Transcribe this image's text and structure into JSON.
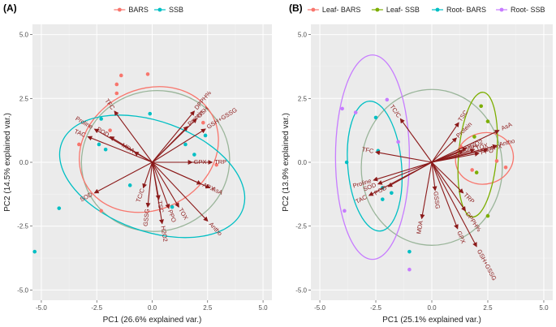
{
  "chart_data": [
    {
      "type": "scatter",
      "panel_label": "(A)",
      "xlabel": "PC1 (26.6% explained var.)",
      "ylabel": "PC2 (14.5% explained var.)",
      "xlim": [
        -5.4,
        5.4
      ],
      "ylim": [
        -5.4,
        5.4
      ],
      "xticks": [
        -5.0,
        -2.5,
        0.0,
        2.5,
        5.0
      ],
      "yticks": [
        -5.0,
        -2.5,
        0.0,
        2.5,
        5.0
      ],
      "tick_labels": [
        "-5.0",
        "-2.5",
        "0.0",
        "2.5",
        "5.0"
      ],
      "legend_position": "top",
      "series": [
        {
          "name": "BARS",
          "color": "#F8766D",
          "points": [
            [
              -1.4,
              3.4
            ],
            [
              -0.2,
              3.45
            ],
            [
              -1.6,
              3.05
            ],
            [
              -1.6,
              2.7
            ],
            [
              -3.3,
              0.7
            ],
            [
              -2.3,
              -1.9
            ],
            [
              -1.9,
              1.25
            ],
            [
              2.3,
              1.55
            ],
            [
              2.9,
              -0.1
            ]
          ],
          "ellipse": {
            "center": [
              -0.15,
              0.5
            ],
            "rx": 3.25,
            "ry": 2.35,
            "angle": -28
          }
        },
        {
          "name": "SSB",
          "color": "#00BFC4",
          "points": [
            [
              -5.3,
              -3.5
            ],
            [
              -4.2,
              -1.8
            ],
            [
              -2.3,
              1.7
            ],
            [
              -0.1,
              1.9
            ],
            [
              1.5,
              0.7
            ],
            [
              1.9,
              0.3
            ],
            [
              2.4,
              1.05
            ],
            [
              0.9,
              -1.75
            ],
            [
              -1.0,
              -0.9
            ],
            [
              -2.1,
              0.5
            ],
            [
              -2.4,
              0.7
            ]
          ],
          "ellipse": {
            "center": [
              0.0,
              -0.55
            ],
            "rx": 4.35,
            "ry": 2.15,
            "angle": 20
          }
        }
      ],
      "normal_ellipse": {
        "color": "#9AB59A",
        "center": [
          0.15,
          0.05
        ],
        "rx": 3.35,
        "ry": 2.75,
        "angle": -12
      },
      "loadings": [
        {
          "label": "TFC",
          "x": -1.7,
          "y": 2.0
        },
        {
          "label": "Proline",
          "x": -2.6,
          "y": 1.3
        },
        {
          "label": "TAC",
          "x": -2.9,
          "y": 1.0
        },
        {
          "label": "POD",
          "x": -1.9,
          "y": 1.0
        },
        {
          "label": "MDA",
          "x": -0.8,
          "y": 0.4
        },
        {
          "label": "SOD",
          "x": -2.6,
          "y": -1.2
        },
        {
          "label": "TC/C",
          "x": -0.4,
          "y": -1.0
        },
        {
          "label": "GSSG",
          "x": -0.2,
          "y": -1.75
        },
        {
          "label": "TSC",
          "x": 0.3,
          "y": -1.45
        },
        {
          "label": "H2O2",
          "x": 0.45,
          "y": -2.4
        },
        {
          "label": "PPO",
          "x": 0.75,
          "y": -1.8
        },
        {
          "label": "TOX",
          "x": 1.2,
          "y": -1.75
        },
        {
          "label": "Antho",
          "x": 2.5,
          "y": -2.3
        },
        {
          "label": "APX",
          "x": 2.2,
          "y": -0.85
        },
        {
          "label": "AsA",
          "x": 2.6,
          "y": -1.0
        },
        {
          "label": "TRP",
          "x": 2.7,
          "y": 0.0
        },
        {
          "label": "GPX",
          "x": 1.8,
          "y": 0.0
        },
        {
          "label": "GSH+GSSG",
          "x": 2.4,
          "y": 1.3
        },
        {
          "label": "GSH",
          "x": 2.0,
          "y": 1.7
        },
        {
          "label": "DPPH%",
          "x": 1.9,
          "y": 2.0
        },
        {
          "label": "Protein",
          "x": 1.6,
          "y": 1.4
        }
      ]
    },
    {
      "type": "scatter",
      "panel_label": "(B)",
      "xlabel": "PC1 (25.1% explained var.)",
      "ylabel": "PC2 (13.9% explained var.)",
      "xlim": [
        -5.4,
        5.4
      ],
      "ylim": [
        -5.4,
        5.4
      ],
      "xticks": [
        -5.0,
        -2.5,
        0.0,
        2.5,
        5.0
      ],
      "yticks": [
        -5.0,
        -2.5,
        0.0,
        2.5,
        5.0
      ],
      "tick_labels": [
        "-5.0",
        "-2.5",
        "0.0",
        "2.5",
        "5.0"
      ],
      "legend_position": "top",
      "series": [
        {
          "name": "Leaf- BARS",
          "color": "#F8766D",
          "points": [
            [
              3.3,
              -0.2
            ],
            [
              2.9,
              0.05
            ],
            [
              1.3,
              0.6
            ],
            [
              1.8,
              -0.3
            ]
          ],
          "ellipse": {
            "center": [
              2.35,
              0.15
            ],
            "rx": 1.3,
            "ry": 1.0,
            "angle": -15
          }
        },
        {
          "name": "Leaf- SSB",
          "color": "#7CAE00",
          "points": [
            [
              2.5,
              1.6
            ],
            [
              2.2,
              2.2
            ],
            [
              1.9,
              1.0
            ],
            [
              2.0,
              -0.4
            ],
            [
              2.5,
              -2.1
            ]
          ],
          "ellipse": {
            "center": [
              2.05,
              0.3
            ],
            "rx": 0.85,
            "ry": 2.45,
            "angle": 5
          }
        },
        {
          "name": "Root- BARS",
          "color": "#00BFC4",
          "points": [
            [
              -3.8,
              0.0
            ],
            [
              -2.5,
              1.75
            ],
            [
              -2.4,
              0.45
            ],
            [
              -2.2,
              -1.0
            ],
            [
              -1.0,
              -3.5
            ],
            [
              -1.8,
              -1.2
            ],
            [
              -2.2,
              -1.45
            ]
          ],
          "ellipse": {
            "center": [
              -2.55,
              -0.15
            ],
            "rx": 1.2,
            "ry": 2.55,
            "angle": -5
          }
        },
        {
          "name": "Root- SSB",
          "color": "#C77CFF",
          "points": [
            [
              -4.0,
              2.1
            ],
            [
              -3.4,
              1.95
            ],
            [
              -2.0,
              2.45
            ],
            [
              -3.9,
              -1.9
            ],
            [
              -1.5,
              0.8
            ],
            [
              -1.0,
              -4.2
            ]
          ],
          "ellipse": {
            "center": [
              -2.65,
              0.2
            ],
            "rx": 1.65,
            "ry": 4.0,
            "angle": 0
          }
        }
      ],
      "normal_ellipse": {
        "color": "#9AB59A",
        "center": [
          0.0,
          -0.2
        ],
        "rx": 3.15,
        "ry": 3.05,
        "angle": 0
      },
      "loadings": [
        {
          "label": "TC/C",
          "x": -1.4,
          "y": 1.7
        },
        {
          "label": "TFC",
          "x": -2.5,
          "y": 0.4
        },
        {
          "label": "Proline",
          "x": -2.6,
          "y": -0.7
        },
        {
          "label": "SOD",
          "x": -2.4,
          "y": -0.85
        },
        {
          "label": "TAC",
          "x": -2.8,
          "y": -1.3
        },
        {
          "label": "POD",
          "x": -1.95,
          "y": -0.95
        },
        {
          "label": "MDA",
          "x": -0.45,
          "y": -2.2
        },
        {
          "label": "GSSG",
          "x": 0.15,
          "y": -1.1
        },
        {
          "label": "GPX",
          "x": 1.15,
          "y": -2.6
        },
        {
          "label": "GSH+GSSG",
          "x": 2.0,
          "y": -3.3
        },
        {
          "label": "DPPH%",
          "x": 1.5,
          "y": -1.9
        },
        {
          "label": "TRP",
          "x": 1.4,
          "y": -1.2
        },
        {
          "label": "Protein",
          "x": 1.1,
          "y": 0.95
        },
        {
          "label": "TSC",
          "x": 1.2,
          "y": 1.55
        },
        {
          "label": "AsA",
          "x": 3.0,
          "y": 1.25
        },
        {
          "label": "APX",
          "x": 2.5,
          "y": 0.5
        },
        {
          "label": "Antho",
          "x": 2.9,
          "y": 0.65
        },
        {
          "label": "H2O2",
          "x": 1.55,
          "y": 0.55
        },
        {
          "label": "TOX",
          "x": 1.9,
          "y": 0.5
        },
        {
          "label": "PPO",
          "x": 2.1,
          "y": 0.35
        },
        {
          "label": "GSH",
          "x": 1.4,
          "y": 0.45
        }
      ]
    }
  ]
}
